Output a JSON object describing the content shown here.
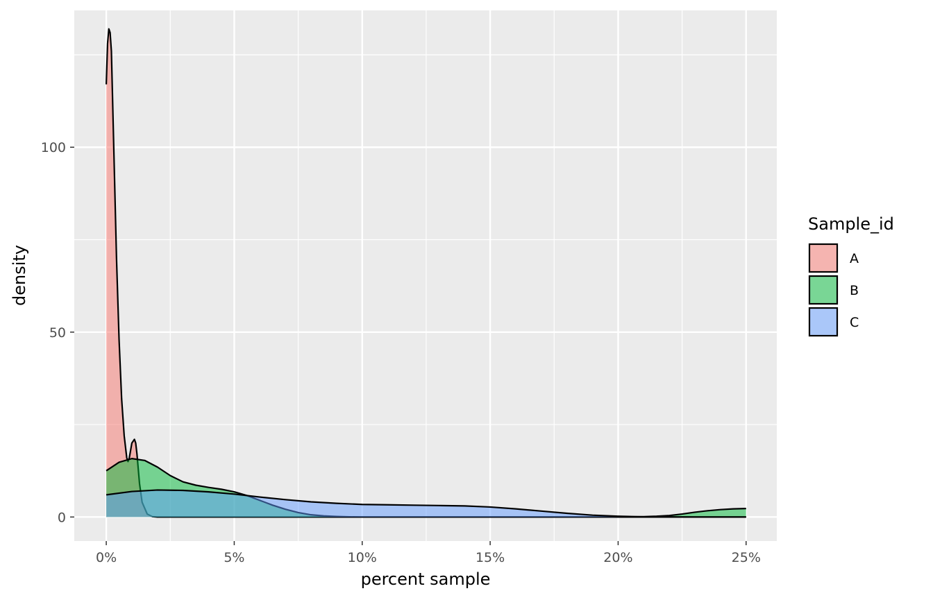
{
  "chart_data": {
    "type": "area",
    "subtype": "density",
    "title": "",
    "xlabel": "percent sample",
    "ylabel": "density",
    "xlim": [
      -0.0125,
      0.262
    ],
    "ylim": [
      -6.5,
      137
    ],
    "x_ticks": [
      0,
      0.05,
      0.1,
      0.15,
      0.2,
      0.25
    ],
    "x_tick_labels": [
      "0%",
      "5%",
      "10%",
      "15%",
      "20%",
      "25%"
    ],
    "x_minor_ticks": [
      0.025,
      0.075,
      0.125,
      0.175,
      0.225
    ],
    "y_ticks": [
      0,
      50,
      100
    ],
    "y_tick_labels": [
      "0",
      "50",
      "100"
    ],
    "y_minor_ticks": [
      25,
      75,
      125
    ],
    "grid": true,
    "background": "#ebebeb",
    "legend": {
      "title": "Sample_id",
      "position": "right"
    },
    "series": [
      {
        "name": "A",
        "color": "#f8766d",
        "x": [
          0,
          0.0005,
          0.001,
          0.0015,
          0.002,
          0.003,
          0.004,
          0.005,
          0.006,
          0.007,
          0.008,
          0.0085,
          0.009,
          0.0095,
          0.01,
          0.011,
          0.0115,
          0.012,
          0.013,
          0.014,
          0.016,
          0.018,
          0.02,
          0.25
        ],
        "y": [
          117,
          128,
          132,
          131,
          126,
          98,
          70,
          48,
          32,
          22,
          16,
          15,
          16,
          18,
          20,
          21,
          20,
          17,
          9,
          4,
          0.8,
          0.1,
          0,
          0
        ]
      },
      {
        "name": "B",
        "color": "#00ba38",
        "x": [
          0,
          0.005,
          0.01,
          0.015,
          0.02,
          0.025,
          0.03,
          0.035,
          0.04,
          0.045,
          0.05,
          0.055,
          0.06,
          0.065,
          0.07,
          0.075,
          0.08,
          0.085,
          0.09,
          0.095,
          0.1,
          0.15,
          0.2,
          0.21,
          0.215,
          0.22,
          0.225,
          0.23,
          0.235,
          0.24,
          0.245,
          0.25
        ],
        "y": [
          12.5,
          14.8,
          15.8,
          15.3,
          13.5,
          11.2,
          9.5,
          8.6,
          8.0,
          7.5,
          6.8,
          5.8,
          4.5,
          3.2,
          2.1,
          1.2,
          0.6,
          0.3,
          0.15,
          0.05,
          0,
          0,
          0,
          0.1,
          0.2,
          0.4,
          0.8,
          1.3,
          1.7,
          2.0,
          2.2,
          2.3
        ]
      },
      {
        "name": "C",
        "color": "#619cff",
        "x": [
          0,
          0.01,
          0.02,
          0.03,
          0.04,
          0.05,
          0.06,
          0.07,
          0.08,
          0.09,
          0.1,
          0.11,
          0.12,
          0.13,
          0.14,
          0.15,
          0.16,
          0.17,
          0.18,
          0.19,
          0.2,
          0.21,
          0.215,
          0.22,
          0.23,
          0.24,
          0.25
        ],
        "y": [
          6.0,
          6.9,
          7.3,
          7.2,
          6.8,
          6.2,
          5.4,
          4.7,
          4.1,
          3.7,
          3.4,
          3.3,
          3.2,
          3.1,
          3.0,
          2.7,
          2.2,
          1.6,
          1.0,
          0.5,
          0.2,
          0.05,
          0.02,
          0.02,
          0.01,
          0,
          0
        ]
      }
    ]
  }
}
